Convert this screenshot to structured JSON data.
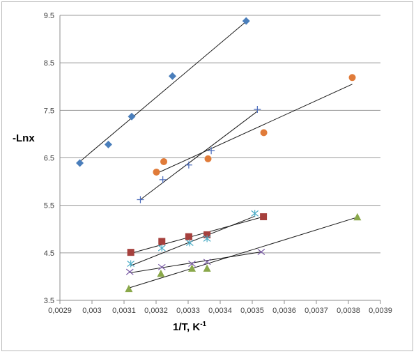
{
  "chart_data": {
    "type": "scatter",
    "title": "",
    "xlabel": "1/T, K",
    "xlabel_sup": "-1",
    "ylabel": "-Lnx",
    "xlim": [
      0.0029,
      0.0039
    ],
    "ylim": [
      3.5,
      9.5
    ],
    "x_ticks": [
      "0,0029",
      "0,003",
      "0,0031",
      "0,0032",
      "0,0033",
      "0,0034",
      "0,0035",
      "0,0036",
      "0,0037",
      "0,0038",
      "0,0039"
    ],
    "y_ticks": [
      "3.5",
      "4.5",
      "5.5",
      "6.5",
      "7.5",
      "8.5",
      "9.5"
    ],
    "grid": "horizontal",
    "legend": "none",
    "series": [
      {
        "marker": "diamond",
        "color": "#4a7ebb",
        "points": [
          [
            0.002962,
            6.39
          ],
          [
            0.003051,
            6.78
          ],
          [
            0.003124,
            7.37
          ],
          [
            0.003251,
            8.22
          ],
          [
            0.003481,
            9.38
          ]
        ],
        "trendline": [
          [
            0.002962,
            6.42
          ],
          [
            0.003481,
            9.37
          ]
        ]
      },
      {
        "marker": "circle",
        "color": "#e07b39",
        "points": [
          [
            0.003201,
            6.2
          ],
          [
            0.003224,
            6.42
          ],
          [
            0.003362,
            6.48
          ],
          [
            0.003536,
            7.03
          ],
          [
            0.003812,
            8.19
          ]
        ],
        "trendline": [
          [
            0.003201,
            6.17
          ],
          [
            0.003812,
            8.05
          ]
        ]
      },
      {
        "marker": "plus",
        "color": "#4a6bbb",
        "points": [
          [
            0.003151,
            5.62
          ],
          [
            0.003221,
            6.04
          ],
          [
            0.003302,
            6.35
          ],
          [
            0.003372,
            6.65
          ],
          [
            0.003516,
            7.52
          ]
        ],
        "trendline": [
          [
            0.003151,
            5.62
          ],
          [
            0.003516,
            7.48
          ]
        ]
      },
      {
        "marker": "square",
        "color": "#a6403d",
        "points": [
          [
            0.003121,
            4.51
          ],
          [
            0.003218,
            4.74
          ],
          [
            0.003302,
            4.84
          ],
          [
            0.003359,
            4.88
          ],
          [
            0.003535,
            5.26
          ]
        ],
        "trendline": [
          [
            0.003121,
            4.49
          ],
          [
            0.003535,
            5.26
          ]
        ]
      },
      {
        "marker": "asterisk",
        "color": "#4bacc6",
        "points": [
          [
            0.003121,
            4.27
          ],
          [
            0.003218,
            4.6
          ],
          [
            0.003305,
            4.71
          ],
          [
            0.003359,
            4.8
          ],
          [
            0.003508,
            5.33
          ]
        ],
        "trendline": [
          [
            0.003121,
            4.23
          ],
          [
            0.003508,
            5.27
          ]
        ]
      },
      {
        "marker": "x",
        "color": "#7a5ba6",
        "points": [
          [
            0.003118,
            4.1
          ],
          [
            0.003218,
            4.2
          ],
          [
            0.003312,
            4.27
          ],
          [
            0.003359,
            4.31
          ],
          [
            0.003528,
            4.52
          ]
        ],
        "trendline": [
          [
            0.003118,
            4.08
          ],
          [
            0.003528,
            4.52
          ]
        ]
      },
      {
        "marker": "triangle",
        "color": "#8aa84a",
        "points": [
          [
            0.003115,
            3.74
          ],
          [
            0.003215,
            4.06
          ],
          [
            0.003312,
            4.17
          ],
          [
            0.003359,
            4.17
          ],
          [
            0.003828,
            5.25
          ]
        ],
        "trendline": [
          [
            0.003115,
            3.76
          ],
          [
            0.003828,
            5.25
          ]
        ]
      }
    ]
  }
}
